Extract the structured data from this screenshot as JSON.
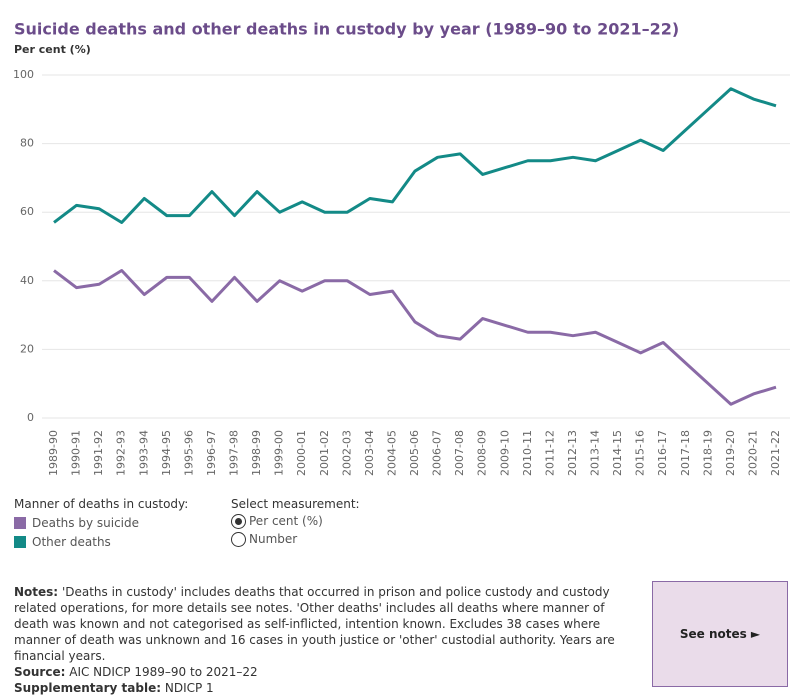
{
  "chart_data": {
    "type": "line",
    "title": "Suicide deaths and other deaths in custody by year (1989–90 to 2021–22)",
    "subtitle": "Per cent (%)",
    "categories": [
      "1989-90",
      "1990-91",
      "1991-92",
      "1992-93",
      "1993-94",
      "1994-95",
      "1995-96",
      "1996-97",
      "1997-98",
      "1998-99",
      "1999-00",
      "2000-01",
      "2001-02",
      "2002-03",
      "2003-04",
      "2004-05",
      "2005-06",
      "2006-07",
      "2007-08",
      "2008-09",
      "2009-10",
      "2010-11",
      "2011-12",
      "2012-13",
      "2013-14",
      "2014-15",
      "2015-16",
      "2016-17",
      "2017-18",
      "2018-19",
      "2019-20",
      "2020-21",
      "2021-22"
    ],
    "series": [
      {
        "name": "Deaths by suicide",
        "color": "#8a6aa6",
        "values": [
          43,
          38,
          39,
          43,
          36,
          41,
          41,
          34,
          41,
          34,
          40,
          37,
          40,
          40,
          36,
          37,
          28,
          24,
          23,
          29,
          27,
          25,
          25,
          24,
          25,
          22,
          19,
          22,
          16,
          10,
          4,
          7,
          9
        ]
      },
      {
        "name": "Other deaths",
        "color": "#138a87",
        "values": [
          57,
          62,
          61,
          57,
          64,
          59,
          59,
          66,
          59,
          66,
          60,
          63,
          60,
          60,
          64,
          63,
          72,
          76,
          77,
          71,
          73,
          75,
          75,
          76,
          75,
          78,
          81,
          78,
          84,
          90,
          96,
          93,
          91
        ]
      }
    ],
    "ylim": [
      0,
      100
    ],
    "yticks": [
      0,
      20,
      40,
      60,
      80,
      100
    ],
    "grid": true,
    "legend_title": "Manner of deaths in custody:"
  },
  "controls": {
    "label": "Select measurement:",
    "options": [
      "Per cent (%)",
      "Number"
    ],
    "selected": 0
  },
  "footer": {
    "notes_label": "Notes:",
    "notes": "'Deaths in custody' includes deaths that occurred in prison and police custody and custody related operations, for more details see notes. 'Other deaths' includes all deaths where manner of death was known and not categorised as self-inflicted, intention known. Excludes 38 cases where manner of death was unknown and 16 cases in youth justice or 'other' custodial authority. Years are financial years.",
    "source_label": "Source:",
    "source": "AIC NDICP 1989–90 to 2021–22",
    "table_label": "Supplementary table:",
    "table": "NDICP 1",
    "button": "See notes ►"
  }
}
